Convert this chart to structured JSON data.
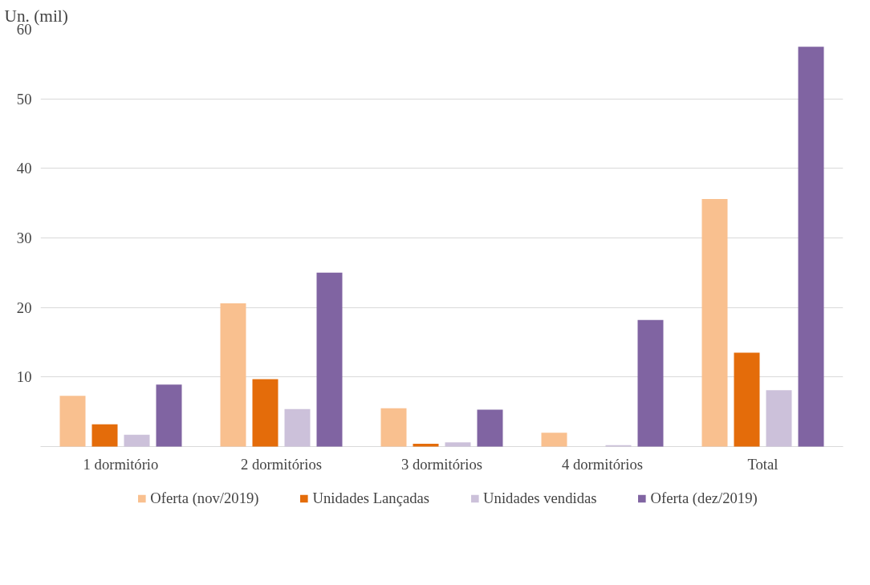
{
  "chart_data": {
    "type": "bar",
    "ylabel": "Un. (mil)",
    "categories": [
      "1 dormitório",
      "2 dormitórios",
      "3 dormitórios",
      "4 dormitórios",
      "Total"
    ],
    "series": [
      {
        "name": "Oferta (nov/2019)",
        "color": "#f9c08f",
        "values": [
          7.3,
          20.6,
          5.5,
          2.0,
          35.6
        ]
      },
      {
        "name": "Unidades Lançadas",
        "color": "#e46c0a",
        "values": [
          3.2,
          9.7,
          0.4,
          0,
          13.5
        ]
      },
      {
        "name": "Unidades vendidas",
        "color": "#ccc1da",
        "values": [
          1.7,
          5.4,
          0.6,
          0.2,
          8.1
        ]
      },
      {
        "name": "Oferta (dez/2019)",
        "color": "#8064a2",
        "values": [
          8.9,
          25.0,
          5.3,
          18.2,
          57.5
        ]
      }
    ],
    "ylim": [
      0,
      60
    ],
    "yticks": [
      {
        "value": 0,
        "label": null
      },
      10,
      20,
      30,
      40,
      50,
      60
    ],
    "grid": "y",
    "legend": "bottom"
  }
}
